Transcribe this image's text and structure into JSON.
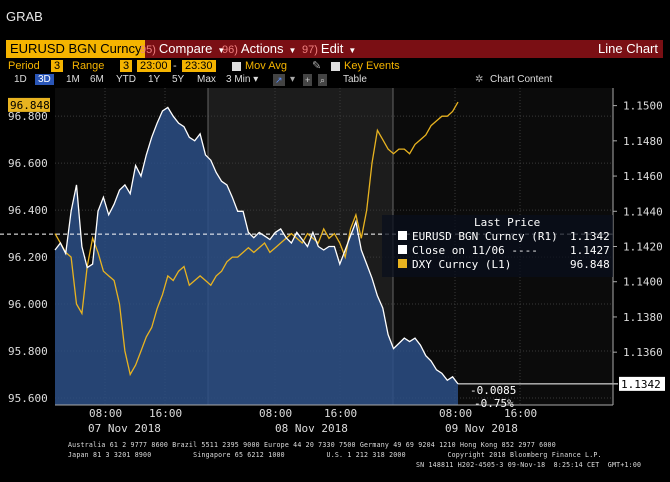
{
  "window_title": "GRAB",
  "toolbar": {
    "ticker": "EURUSD BGN Curncy",
    "menus": [
      {
        "num": "95)",
        "label": "Compare",
        "caret": true
      },
      {
        "num": "96)",
        "label": "Actions",
        "caret": true
      },
      {
        "num": "97)",
        "label": "Edit",
        "caret": true
      }
    ],
    "view": "Line Chart"
  },
  "settings": {
    "period_label": "Period",
    "period_value": "3",
    "range_label": "Range",
    "range_value": "3",
    "range_start": "23:00",
    "range_sep": "-",
    "range_end": "23:30",
    "mov_avg": "Mov Avg",
    "key_events": "Key Events"
  },
  "timeframes": [
    "1D",
    "3D",
    "1M",
    "6M",
    "YTD",
    "1Y",
    "5Y",
    "Max"
  ],
  "selected_timeframe": "3D",
  "interval": "3 Min",
  "table_label": "Table",
  "chart_content_label": "Chart Content",
  "colors": {
    "eurusd": "#ffffff",
    "dxy": "#e8b320",
    "plot_bg": "#15305a",
    "fill": "#2c4f86",
    "accent": "#f5b400",
    "toolbar": "#7a0f14"
  },
  "chart_data": {
    "type": "line",
    "left_axis": {
      "ticks": [
        "96.800",
        "96.600",
        "96.400",
        "96.200",
        "96.000",
        "95.800",
        "95.600"
      ],
      "range": [
        95.57,
        96.92
      ]
    },
    "right_axis": {
      "ticks": [
        "1.1500",
        "1.1480",
        "1.1460",
        "1.1440",
        "1.1420",
        "1.1400",
        "1.1380",
        "1.1360"
      ],
      "range": [
        1.133,
        1.151
      ]
    },
    "x_hour_labels": [
      "08:00",
      "16:00",
      "08:00",
      "16:00",
      "08:00",
      "16:00"
    ],
    "x_day_labels": [
      "07 Nov 2018",
      "08 Nov 2018",
      "09 Nov 2018"
    ],
    "series": [
      {
        "name": "EURUSD BGN Curncy",
        "axis": "right",
        "last_price": "1.1342",
        "values": [
          1.1418,
          1.1422,
          1.1416,
          1.144,
          1.1455,
          1.142,
          1.1408,
          1.141,
          1.144,
          1.1448,
          1.1438,
          1.1444,
          1.1452,
          1.1455,
          1.145,
          1.1466,
          1.146,
          1.1472,
          1.1482,
          1.149,
          1.1497,
          1.1499,
          1.1494,
          1.149,
          1.1488,
          1.1482,
          1.148,
          1.1484,
          1.1472,
          1.1469,
          1.1462,
          1.1457,
          1.1455,
          1.1448,
          1.144,
          1.144,
          1.1428,
          1.1425,
          1.1428,
          1.1426,
          1.1424,
          1.1428,
          1.143,
          1.1425,
          1.1422,
          1.1428,
          1.1424,
          1.142,
          1.1428,
          1.142,
          1.1418,
          1.142,
          1.142,
          1.141,
          1.1418,
          1.1426,
          1.1434,
          1.1418,
          1.141,
          1.1402,
          1.1392,
          1.1385,
          1.137,
          1.1362,
          1.1365,
          1.1368,
          1.1366,
          1.1368,
          1.1364,
          1.1358,
          1.1355,
          1.135,
          1.1348,
          1.1344,
          1.1346,
          1.1342
        ]
      },
      {
        "name": "DXY Curncy",
        "axis": "left",
        "last_price": "96.848",
        "values": [
          96.3,
          96.26,
          96.22,
          96.2,
          96.0,
          95.96,
          96.16,
          96.28,
          96.22,
          96.14,
          96.12,
          96.1,
          96.0,
          95.8,
          95.7,
          95.74,
          95.8,
          95.86,
          95.9,
          95.98,
          96.04,
          96.12,
          96.1,
          96.14,
          96.16,
          96.08,
          96.1,
          96.12,
          96.1,
          96.08,
          96.12,
          96.14,
          96.18,
          96.2,
          96.2,
          96.22,
          96.24,
          96.22,
          96.24,
          96.26,
          96.22,
          96.24,
          96.26,
          96.28,
          96.3,
          96.28,
          96.26,
          96.3,
          96.28,
          96.26,
          96.32,
          96.28,
          96.3,
          96.26,
          96.2,
          96.32,
          96.38,
          96.28,
          96.4,
          96.6,
          96.74,
          96.7,
          96.66,
          96.64,
          96.66,
          96.66,
          96.64,
          96.68,
          96.7,
          96.72,
          96.76,
          96.78,
          96.8,
          96.8,
          96.82,
          96.86
        ]
      }
    ],
    "legend": {
      "title": "Last Price",
      "rows": [
        {
          "label": "EURUSD BGN Curncy  (R1)",
          "value": "1.1342",
          "color": "#ffffff"
        },
        {
          "label": "Close on 11/06 ----",
          "value": "1.1427",
          "color": "#ffffff"
        },
        {
          "label": "DXY Curncy  (L1)",
          "value": "96.848",
          "color": "#e8b320"
        }
      ]
    },
    "reference_line": {
      "label": "Close on 11/06",
      "value": 1.1427
    },
    "change_labels": [
      "-0.0085",
      "-0.75%"
    ]
  },
  "footer": {
    "line1": "Australia 61 2 9777 8600 Brazil 5511 2395 9000 Europe 44 20 7330 7500 Germany 49 69 9204 1210 Hong Kong 852 2977 6000",
    "line2": "Japan 81 3 3201 8900          Singapore 65 6212 1000          U.S. 1 212 318 2000          Copyright 2018 Bloomberg Finance L.P.",
    "line3": "SN 148811 H202-4505-3 09-Nov-18  8:25:14 CET  GMT+1:00"
  }
}
